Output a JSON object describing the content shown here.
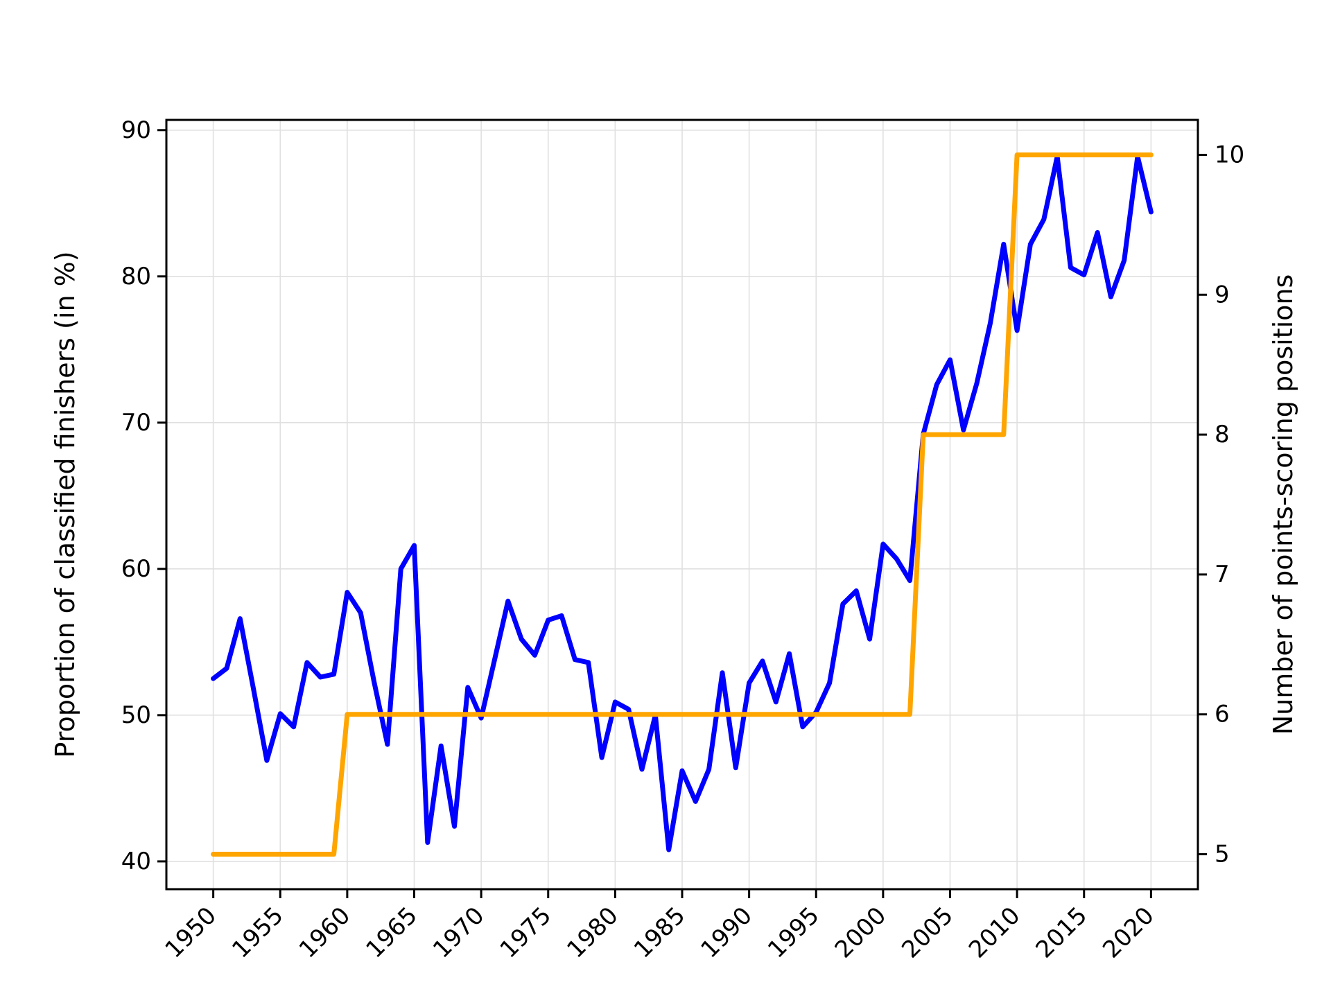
{
  "page_bg": "#ffffff",
  "chart_data": {
    "type": "line",
    "title": "",
    "xlabel": "",
    "ylabel_left": "Proportion of classified finishers (in %)",
    "ylabel_right": "Number of points-scoring positions",
    "x": [
      1950,
      1951,
      1952,
      1953,
      1954,
      1955,
      1956,
      1957,
      1958,
      1959,
      1960,
      1961,
      1962,
      1963,
      1964,
      1965,
      1966,
      1967,
      1968,
      1969,
      1970,
      1971,
      1972,
      1973,
      1974,
      1975,
      1976,
      1977,
      1978,
      1979,
      1980,
      1981,
      1982,
      1983,
      1984,
      1985,
      1986,
      1987,
      1988,
      1989,
      1990,
      1991,
      1992,
      1993,
      1994,
      1995,
      1996,
      1997,
      1998,
      1999,
      2000,
      2001,
      2002,
      2003,
      2004,
      2005,
      2006,
      2007,
      2008,
      2009,
      2010,
      2011,
      2012,
      2013,
      2014,
      2015,
      2016,
      2017,
      2018,
      2019,
      2020
    ],
    "series": [
      {
        "name": "Proportion of classified finishers (in %)",
        "axis": "left",
        "color": "#0000ff",
        "values": [
          52.5,
          53.2,
          56.6,
          51.8,
          46.9,
          50.1,
          49.2,
          53.6,
          52.6,
          52.8,
          58.4,
          57.0,
          52.3,
          48.0,
          60.0,
          61.6,
          41.3,
          47.9,
          42.4,
          51.9,
          49.8,
          53.8,
          57.8,
          55.2,
          54.1,
          56.5,
          56.8,
          53.8,
          53.6,
          47.1,
          50.9,
          50.4,
          46.3,
          50.0,
          40.8,
          46.2,
          44.1,
          46.3,
          52.9,
          46.4,
          52.2,
          53.7,
          50.9,
          54.2,
          49.2,
          50.2,
          52.2,
          57.6,
          58.5,
          55.2,
          61.7,
          60.7,
          59.2,
          69.2,
          72.6,
          74.3,
          69.5,
          72.7,
          76.8,
          82.2,
          76.3,
          82.2,
          83.9,
          88.2,
          80.6,
          80.1,
          83.0,
          78.6,
          81.1,
          88.2,
          84.4
        ]
      },
      {
        "name": "Number of points-scoring positions",
        "axis": "right",
        "color": "#ffa500",
        "values": [
          5,
          5,
          5,
          5,
          5,
          5,
          5,
          5,
          5,
          5,
          6,
          6,
          6,
          6,
          6,
          6,
          6,
          6,
          6,
          6,
          6,
          6,
          6,
          6,
          6,
          6,
          6,
          6,
          6,
          6,
          6,
          6,
          6,
          6,
          6,
          6,
          6,
          6,
          6,
          6,
          6,
          6,
          6,
          6,
          6,
          6,
          6,
          6,
          6,
          6,
          6,
          6,
          6,
          8,
          8,
          8,
          8,
          8,
          8,
          8,
          10,
          10,
          10,
          10,
          10,
          10,
          10,
          10,
          10,
          10,
          10
        ]
      }
    ],
    "xlim": [
      1946.5,
      2023.5
    ],
    "ylim_left": [
      38.1,
      90.7
    ],
    "ylim_right": [
      4.75,
      10.25
    ],
    "xticks": [
      1950,
      1955,
      1960,
      1965,
      1970,
      1975,
      1980,
      1985,
      1990,
      1995,
      2000,
      2005,
      2010,
      2015,
      2020
    ],
    "yticks_left": [
      40,
      50,
      60,
      70,
      80,
      90
    ],
    "yticks_right": [
      5,
      6,
      7,
      8,
      9,
      10
    ],
    "xtick_rotation_deg": 45,
    "grid": true,
    "grid_color": "#e0e0e0",
    "spine_color": "#000000",
    "legend": "none"
  }
}
